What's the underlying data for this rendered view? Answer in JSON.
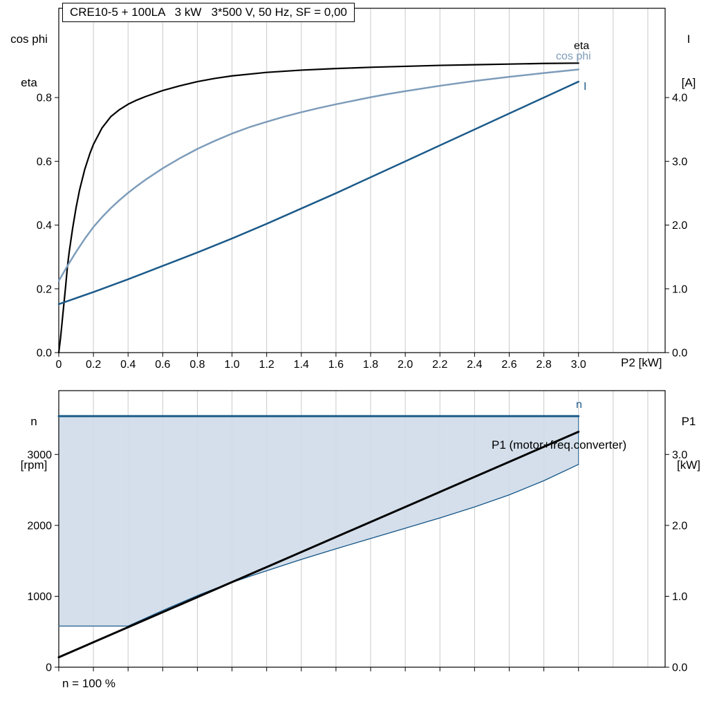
{
  "colors": {
    "curve_black": "#000000",
    "curve_dark_blue": "#1b5a8a",
    "curve_light_blue": "#7d9cba",
    "fill_blue": "#cfdce9",
    "grid": "#c9c9c9",
    "axis": "#000000",
    "background": "#ffffff"
  },
  "chart_data": [
    {
      "type": "line",
      "panel": "top",
      "title": "CRE10-5 + 100LA   3 kW   3*500 V, 50 Hz, SF = 0,00",
      "xlabel": "P2 [kW]",
      "ylabel_left_lines": [
        "cos phi",
        "eta"
      ],
      "ylabel_right_lines": [
        "I",
        "[A]"
      ],
      "xlim": [
        0,
        3.5
      ],
      "ylim_left": [
        0,
        1.08
      ],
      "ylim_right": [
        0,
        5.4
      ],
      "grid": "vertical",
      "grid_x": [
        0.2,
        0.4,
        0.6,
        0.8,
        1.0,
        1.2,
        1.4,
        1.6,
        1.8,
        2.0,
        2.2,
        2.4,
        2.6,
        2.8,
        3.0,
        3.2,
        3.4
      ],
      "x_ticks": {
        "values": [
          0,
          0.2,
          0.4,
          0.6,
          0.8,
          1.0,
          1.2,
          1.4,
          1.6,
          1.8,
          2.0,
          2.2,
          2.4,
          2.6,
          2.8,
          3.0
        ],
        "labels": [
          "0",
          "0.2",
          "0.4",
          "0.6",
          "0.8",
          "1.0",
          "1.2",
          "1.4",
          "1.6",
          "1.8",
          "2.0",
          "2.2",
          "2.4",
          "2.6",
          "2.8",
          "3.0"
        ]
      },
      "y_ticks_left": {
        "values": [
          0,
          0.2,
          0.4,
          0.6,
          0.8
        ],
        "labels": [
          "0.0",
          "0.2",
          "0.4",
          "0.6",
          "0.8"
        ]
      },
      "y_ticks_right": {
        "values": [
          0,
          1,
          2,
          3,
          4
        ],
        "labels": [
          "0.0",
          "1.0",
          "2.0",
          "3.0",
          "4.0"
        ]
      },
      "series": [
        {
          "name": "eta",
          "axis": "left",
          "color": "#000000",
          "width": 2.2,
          "points": [
            [
              0,
              0
            ],
            [
              0.01,
              0.045
            ],
            [
              0.02,
              0.1
            ],
            [
              0.03,
              0.155
            ],
            [
              0.04,
              0.21
            ],
            [
              0.05,
              0.27
            ],
            [
              0.06,
              0.315
            ],
            [
              0.08,
              0.39
            ],
            [
              0.1,
              0.455
            ],
            [
              0.12,
              0.51
            ],
            [
              0.15,
              0.575
            ],
            [
              0.18,
              0.625
            ],
            [
              0.2,
              0.653
            ],
            [
              0.25,
              0.705
            ],
            [
              0.3,
              0.74
            ],
            [
              0.35,
              0.762
            ],
            [
              0.4,
              0.779
            ],
            [
              0.45,
              0.792
            ],
            [
              0.5,
              0.803
            ],
            [
              0.6,
              0.822
            ],
            [
              0.7,
              0.837
            ],
            [
              0.8,
              0.85
            ],
            [
              0.9,
              0.86
            ],
            [
              1.0,
              0.868
            ],
            [
              1.2,
              0.879
            ],
            [
              1.4,
              0.886
            ],
            [
              1.6,
              0.891
            ],
            [
              1.8,
              0.895
            ],
            [
              2.0,
              0.898
            ],
            [
              2.2,
              0.901
            ],
            [
              2.4,
              0.903
            ],
            [
              2.6,
              0.905
            ],
            [
              2.8,
              0.907
            ],
            [
              3.0,
              0.908
            ]
          ]
        },
        {
          "name": "cos phi",
          "axis": "left",
          "color": "#7d9cba",
          "width": 2.5,
          "points": [
            [
              0,
              0.225
            ],
            [
              0.05,
              0.272
            ],
            [
              0.1,
              0.316
            ],
            [
              0.15,
              0.357
            ],
            [
              0.2,
              0.394
            ],
            [
              0.25,
              0.425
            ],
            [
              0.3,
              0.453
            ],
            [
              0.35,
              0.478
            ],
            [
              0.4,
              0.501
            ],
            [
              0.45,
              0.522
            ],
            [
              0.5,
              0.542
            ],
            [
              0.6,
              0.578
            ],
            [
              0.7,
              0.61
            ],
            [
              0.8,
              0.639
            ],
            [
              0.9,
              0.664
            ],
            [
              1.0,
              0.687
            ],
            [
              1.1,
              0.707
            ],
            [
              1.2,
              0.724
            ],
            [
              1.3,
              0.74
            ],
            [
              1.4,
              0.754
            ],
            [
              1.5,
              0.767
            ],
            [
              1.6,
              0.779
            ],
            [
              1.7,
              0.79
            ],
            [
              1.8,
              0.801
            ],
            [
              1.9,
              0.811
            ],
            [
              2.0,
              0.82
            ],
            [
              2.2,
              0.837
            ],
            [
              2.4,
              0.852
            ],
            [
              2.6,
              0.865
            ],
            [
              2.8,
              0.877
            ],
            [
              3.0,
              0.888
            ]
          ]
        },
        {
          "name": "I",
          "axis": "right",
          "color": "#1b5a8a",
          "width": 2.5,
          "points": [
            [
              0,
              0.76
            ],
            [
              0.2,
              0.95
            ],
            [
              0.4,
              1.15
            ],
            [
              0.6,
              1.36
            ],
            [
              0.8,
              1.57
            ],
            [
              1.0,
              1.79
            ],
            [
              1.2,
              2.02
            ],
            [
              1.4,
              2.26
            ],
            [
              1.6,
              2.5
            ],
            [
              1.8,
              2.75
            ],
            [
              2.0,
              3.0
            ],
            [
              2.2,
              3.25
            ],
            [
              2.4,
              3.5
            ],
            [
              2.6,
              3.75
            ],
            [
              2.8,
              4.0
            ],
            [
              3.0,
              4.25
            ]
          ]
        }
      ]
    },
    {
      "type": "line",
      "panel": "bottom",
      "xlabel": "",
      "ylabel_left_lines": [
        "n",
        "[rpm]"
      ],
      "ylabel_right_lines": [
        "P1",
        "[kW]"
      ],
      "annotation": "n = 100 %",
      "xlim": [
        0,
        3.5
      ],
      "ylim_left": [
        0,
        3900
      ],
      "ylim_right": [
        0,
        3.9
      ],
      "grid": "vertical",
      "grid_x": [
        0.2,
        0.4,
        0.6,
        0.8,
        1.0,
        1.2,
        1.4,
        1.6,
        1.8,
        2.0,
        2.2,
        2.4,
        2.6,
        2.8,
        3.0,
        3.2,
        3.4
      ],
      "x_ticks": {
        "values": [
          0,
          0.2,
          0.4,
          0.6,
          0.8,
          1.0,
          1.2,
          1.4,
          1.6,
          1.8,
          2.0,
          2.2,
          2.4,
          2.6,
          2.8,
          3.0
        ],
        "labels": []
      },
      "y_ticks_left": {
        "values": [
          0,
          1000,
          2000,
          3000
        ],
        "labels": [
          "0",
          "1000",
          "2000",
          "3000"
        ]
      },
      "y_ticks_right": {
        "values": [
          0,
          1,
          2,
          3
        ],
        "labels": [
          "0.0",
          "1.0",
          "2.0",
          "3.0"
        ]
      },
      "fill_between": {
        "upper": "n",
        "lower": "n_min",
        "color": "#cfdce9",
        "opacity": 0.9,
        "edge_color": "#1b5a8a"
      },
      "series": [
        {
          "name": "n",
          "axis": "left",
          "color": "#1b5a8a",
          "width": 3,
          "points": [
            [
              0,
              3540
            ],
            [
              3.0,
              3540
            ]
          ]
        },
        {
          "name": "n_min",
          "axis": "left",
          "color": "#1b5a8a",
          "width": 1.3,
          "points": [
            [
              0,
              580
            ],
            [
              0.4,
              580
            ],
            [
              0.5,
              690
            ],
            [
              0.6,
              800
            ],
            [
              0.7,
              905
            ],
            [
              0.8,
              1010
            ],
            [
              0.9,
              1105
            ],
            [
              1.0,
              1195
            ],
            [
              1.1,
              1280
            ],
            [
              1.2,
              1360
            ],
            [
              1.4,
              1520
            ],
            [
              1.6,
              1670
            ],
            [
              1.8,
              1815
            ],
            [
              2.0,
              1960
            ],
            [
              2.2,
              2105
            ],
            [
              2.4,
              2260
            ],
            [
              2.6,
              2430
            ],
            [
              2.8,
              2630
            ],
            [
              3.0,
              2860
            ]
          ]
        },
        {
          "name": "P1 (motor+freq.converter)",
          "axis": "right",
          "color": "#000000",
          "width": 3,
          "points": [
            [
              0,
              0.14
            ],
            [
              3.0,
              3.32
            ]
          ]
        }
      ]
    }
  ]
}
